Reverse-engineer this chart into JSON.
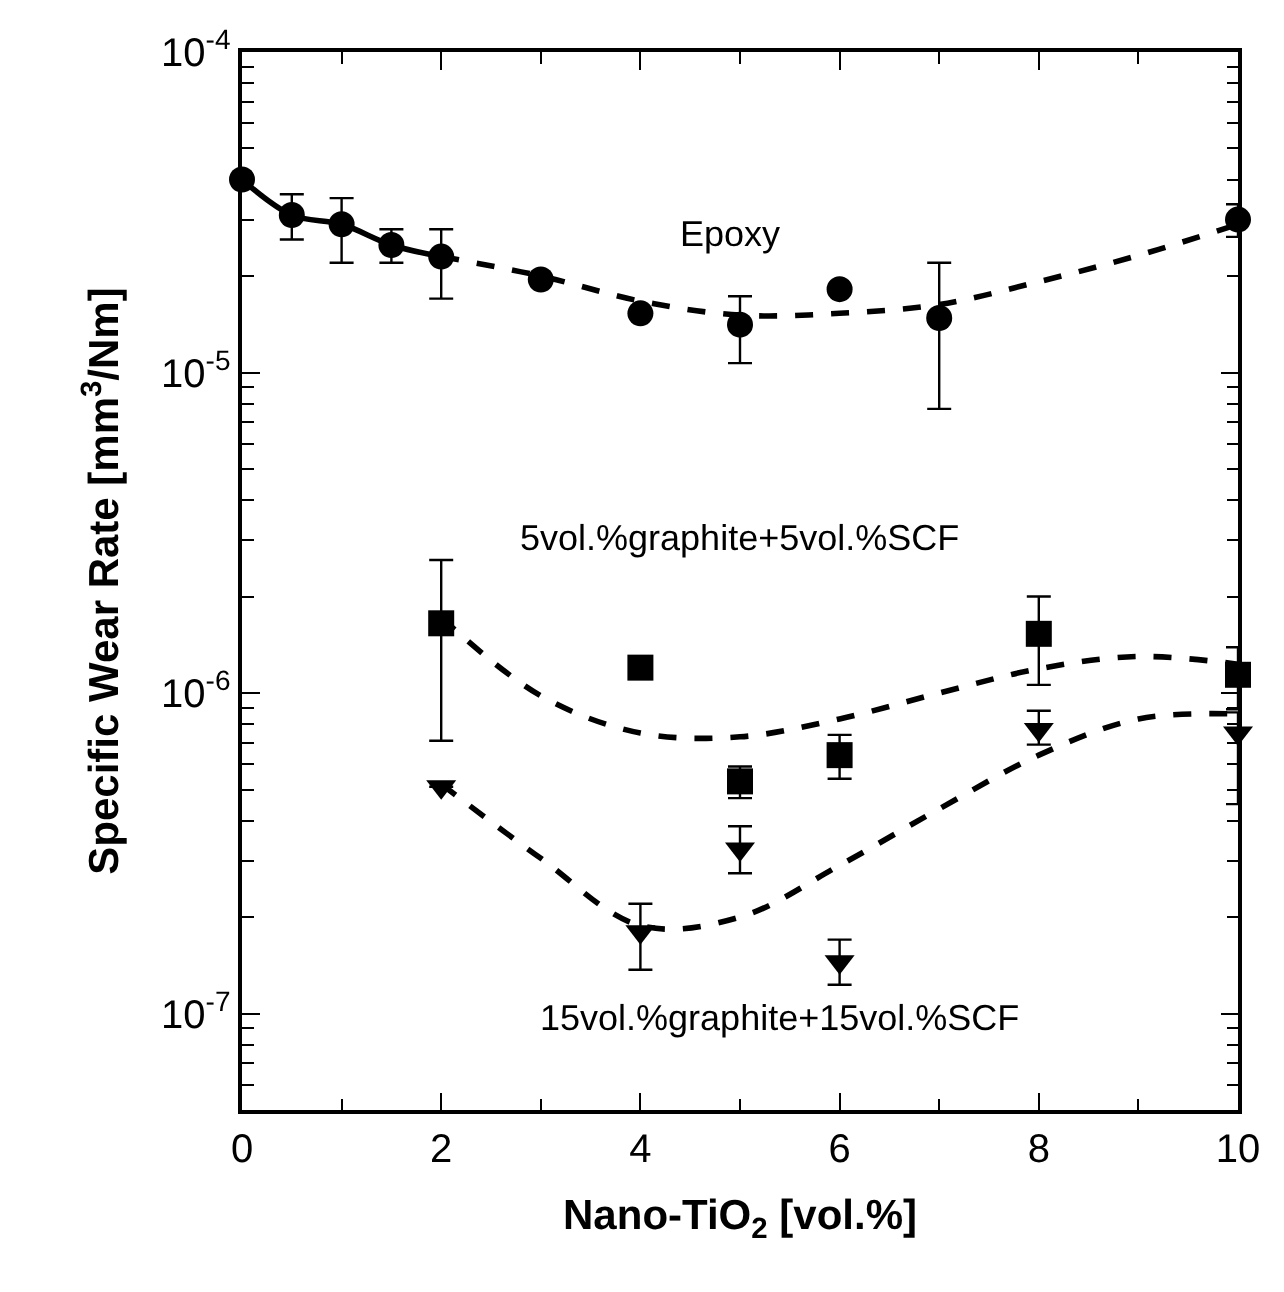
{
  "chart_data": {
    "type": "scatter",
    "xlabel": "Nano-TiO$_{2}$ [vol.%]",
    "ylabel": "Specific Wear Rate [mm$^{3}$/Nm]",
    "log": "y",
    "xlim": [
      0,
      10
    ],
    "xticks": [
      0,
      2,
      4,
      6,
      8,
      10
    ],
    "ylim": [
      5e-08,
      0.0001
    ],
    "yticks": [
      {
        "value": 1e-07,
        "label": "10$^{-7}$"
      },
      {
        "value": 1e-06,
        "label": "10$^{-6}$"
      },
      {
        "value": 1e-05,
        "label": "10$^{-5}$"
      },
      {
        "value": 0.0001,
        "label": "10$^{-4}$"
      }
    ],
    "series": [
      {
        "name": "Epoxy",
        "marker": "circle",
        "color": "#000000",
        "x": [
          0,
          0.5,
          1,
          1.5,
          2,
          3,
          4,
          5,
          6,
          7,
          10
        ],
        "values": [
          4e-05,
          3.1e-05,
          2.9e-05,
          2.5e-05,
          2.3e-05,
          1.95e-05,
          1.53e-05,
          1.41e-05,
          1.82e-05,
          1.48e-05,
          3e-05
        ],
        "errors": [
          null,
          [
            2.6e-05,
            3.6e-05
          ],
          [
            2.2e-05,
            3.5e-05
          ],
          [
            2.2e-05,
            2.8e-05
          ],
          [
            1.7e-05,
            2.8e-05
          ],
          null,
          null,
          [
            1.07e-05,
            1.73e-05
          ],
          null,
          [
            7.7e-06,
            2.2e-05
          ],
          [
            2.65e-05,
            3.35e-05
          ]
        ]
      },
      {
        "type": "line",
        "line_style": "solid",
        "marker": "none",
        "color": "#000000",
        "x": [
          0,
          0.5,
          1,
          1.5,
          2
        ],
        "values": [
          4e-05,
          3.1e-05,
          2.9e-05,
          2.5e-05,
          2.3e-05
        ]
      },
      {
        "type": "line",
        "line_style": "dashed",
        "marker": "none",
        "color": "#000000",
        "x": [
          2,
          3,
          4,
          5,
          6,
          7,
          8,
          9,
          10
        ],
        "values": [
          2.3e-05,
          2e-05,
          1.67e-05,
          1.51e-05,
          1.53e-05,
          1.63e-05,
          1.92e-05,
          2.32e-05,
          2.9e-05
        ]
      },
      {
        "name": "5vol.%graphite+5vol.%SCF",
        "marker": "square",
        "color": "#000000",
        "x": [
          2,
          4,
          5,
          6,
          8,
          10
        ],
        "values": [
          1.65e-06,
          1.2e-06,
          5.3e-07,
          6.4e-07,
          1.53e-06,
          1.14e-06
        ],
        "errors": [
          [
            7.1e-07,
            2.6e-06
          ],
          null,
          [
            4.7e-07,
            5.9e-07
          ],
          [
            5.4e-07,
            7.4e-07
          ],
          [
            1.06e-06,
            2e-06
          ],
          [
            8.9e-07,
            1.39e-06
          ]
        ]
      },
      {
        "type": "line",
        "line_style": "dashed",
        "marker": "none",
        "color": "#000000",
        "x": [
          2,
          3,
          4,
          5,
          6,
          7,
          8,
          9,
          10
        ],
        "values": [
          1.72e-06,
          9.8e-07,
          7.5e-07,
          7.3e-07,
          8.3e-07,
          1e-06,
          1.19e-06,
          1.3e-06,
          1.23e-06
        ]
      },
      {
        "name": "15vol.%graphite+15vol.%SCF",
        "marker": "triangle",
        "color": "#000000",
        "x": [
          2,
          4,
          5,
          6,
          8,
          10
        ],
        "values": [
          5.1e-07,
          1.8e-07,
          3.26e-07,
          1.45e-07,
          7.7e-07,
          7.5e-07
        ],
        "errors": [
          null,
          [
            1.37e-07,
            2.2e-07
          ],
          [
            2.74e-07,
            3.84e-07
          ],
          [
            1.23e-07,
            1.7e-07
          ],
          [
            6.9e-07,
            8.8e-07
          ],
          [
            4.5e-07,
            8.7e-07
          ]
        ]
      },
      {
        "type": "line",
        "line_style": "dashed",
        "marker": "none",
        "color": "#000000",
        "x": [
          2,
          3,
          4,
          5,
          6,
          7,
          8,
          9,
          10
        ],
        "values": [
          5.2e-07,
          3.05e-07,
          1.88e-07,
          2e-07,
          2.9e-07,
          4.35e-07,
          6.4e-07,
          8.3e-07,
          8.6e-07
        ]
      }
    ]
  }
}
